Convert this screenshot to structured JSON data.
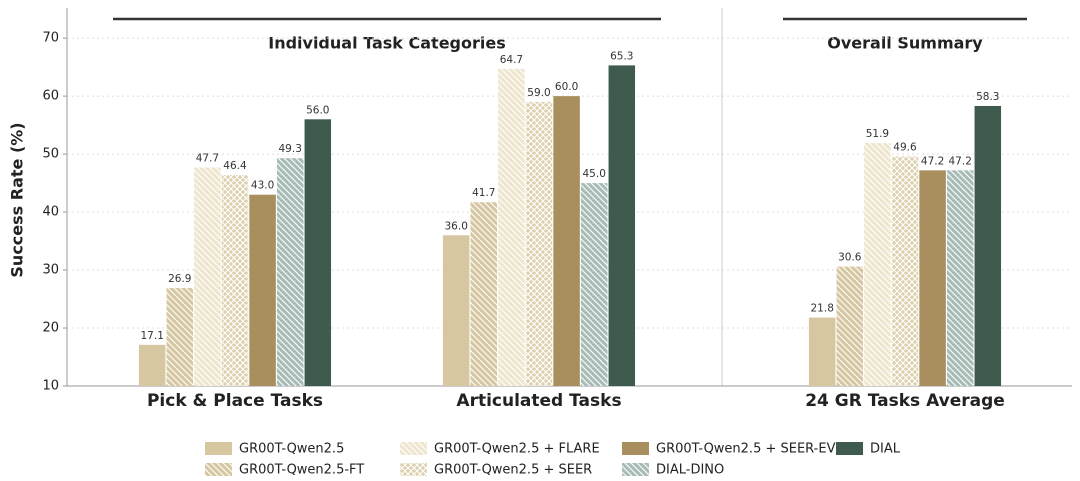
{
  "chart_data": {
    "type": "bar",
    "annotations": [
      "Individual Task Categories",
      "Overall Summary"
    ],
    "y_label": "Success Rate (%)",
    "categories": [
      "Pick & Place Tasks",
      "Articulated Tasks",
      "24 GR Tasks Average"
    ],
    "series": [
      {
        "name": "GR00T-Qwen2.5",
        "color": "#d6c7a1",
        "hatch": null,
        "values": [
          17.1,
          36.0,
          21.8
        ],
        "value_labels": [
          "17.1",
          "36.0",
          "21.8"
        ]
      },
      {
        "name": "GR00T-Qwen2.5-FT",
        "color": "#d6c7a1",
        "hatch": "diag",
        "values": [
          26.9,
          41.7,
          30.6
        ],
        "value_labels": [
          "26.9",
          "41.7",
          "30.6"
        ]
      },
      {
        "name": "GR00T-Qwen2.5 + FLARE",
        "color": "#efe6cf",
        "hatch": "diag",
        "values": [
          47.7,
          64.7,
          51.9
        ],
        "value_labels": [
          "47.7",
          "64.7",
          "51.9"
        ]
      },
      {
        "name": "GR00T-Qwen2.5 + SEER",
        "color": "#ddd0ae",
        "hatch": "cross",
        "values": [
          46.4,
          59.0,
          49.6
        ],
        "value_labels": [
          "46.4",
          "59.0",
          "49.6"
        ]
      },
      {
        "name": "GR00T-Qwen2.5 + SEER-EV",
        "color": "#a88f5d",
        "hatch": null,
        "values": [
          43.0,
          60.0,
          47.2
        ],
        "value_labels": [
          "43.0",
          "60.0",
          "47.2"
        ]
      },
      {
        "name": "DIAL-DINO",
        "color": "#a8bcb7",
        "hatch": "diag",
        "values": [
          49.3,
          45.0,
          47.2
        ],
        "value_labels": [
          "49.3",
          "45.0",
          "47.2"
        ]
      },
      {
        "name": "DIAL",
        "color": "#3e5b4e",
        "hatch": null,
        "values": [
          56.0,
          65.3,
          58.3
        ],
        "value_labels": [
          "56.0",
          "65.3",
          "58.3"
        ]
      }
    ],
    "ylim": [
      10,
      75.2
    ],
    "yticks": [
      10,
      20,
      30,
      40,
      50,
      60,
      70
    ],
    "grid": true
  }
}
